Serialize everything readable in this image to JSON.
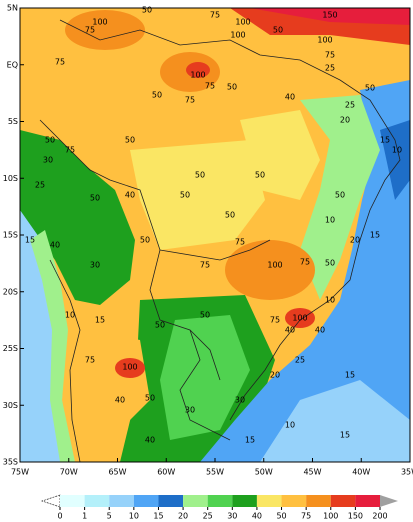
{
  "map": {
    "lat_labels": [
      "5N",
      "EQ",
      "5S",
      "10S",
      "15S",
      "20S",
      "25S",
      "30S",
      "35S"
    ],
    "lon_labels": [
      "75W",
      "70W",
      "65W",
      "60W",
      "55W",
      "50W",
      "45W",
      "40W",
      "35W"
    ],
    "contour_labels": [
      100,
      50,
      75,
      100,
      100,
      50,
      150,
      100,
      75,
      25,
      75,
      75,
      50,
      100,
      75,
      50,
      75,
      40,
      50,
      25,
      20,
      50,
      75,
      50,
      30,
      50,
      50,
      15,
      10,
      25,
      50,
      40,
      50,
      50,
      50,
      15,
      40,
      30,
      50,
      75,
      75,
      100,
      75,
      50,
      15,
      50,
      50,
      75,
      100,
      40,
      10,
      75,
      100,
      50,
      30,
      30,
      20,
      25,
      15,
      15,
      10,
      15,
      40,
      40,
      40,
      10,
      10,
      20,
      15
    ],
    "colorbar": {
      "levels": [
        0,
        1,
        5,
        10,
        15,
        20,
        25,
        30,
        40,
        50,
        75,
        100,
        150,
        200
      ],
      "colors": [
        "#ffffff",
        "#e1ffff",
        "#b4f0fa",
        "#96d2fa",
        "#50a5f5",
        "#1e6ec8",
        "#a0f08c",
        "#50d250",
        "#1ea01e",
        "#fae664",
        "#ffc040",
        "#f5901e",
        "#e63c1e",
        "#e61e3c",
        "#a0a0a0"
      ]
    }
  }
}
